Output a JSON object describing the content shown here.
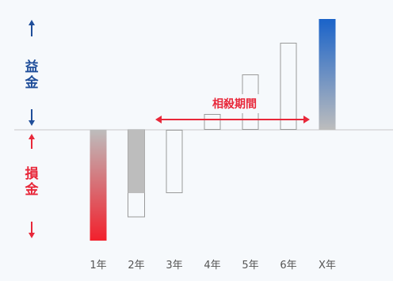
{
  "chart_data": {
    "type": "bar",
    "categories": [
      "1年",
      "2年",
      "3年",
      "4年",
      "5年",
      "6年",
      "X年"
    ],
    "series": [
      {
        "values": [
          -14,
          -8,
          -8,
          2,
          7,
          11,
          14
        ]
      }
    ],
    "offset_values": [
      null,
      -11,
      null,
      null,
      null,
      null,
      null
    ],
    "ylim": [
      -15,
      15
    ],
    "grid": false,
    "legend": "none",
    "profit_label": "益金",
    "loss_label": "損金",
    "annotation": "相殺期間",
    "colors": {
      "profit_text": "#1f4e9a",
      "loss_text": "#e8283a",
      "profit_bar_top": "#1a63c9",
      "loss_bar_bottom": "#f2202c",
      "bar_neutral": "#bdbdbd",
      "outline": "#9a9a9a",
      "baseline": "#c8c8c8"
    }
  }
}
